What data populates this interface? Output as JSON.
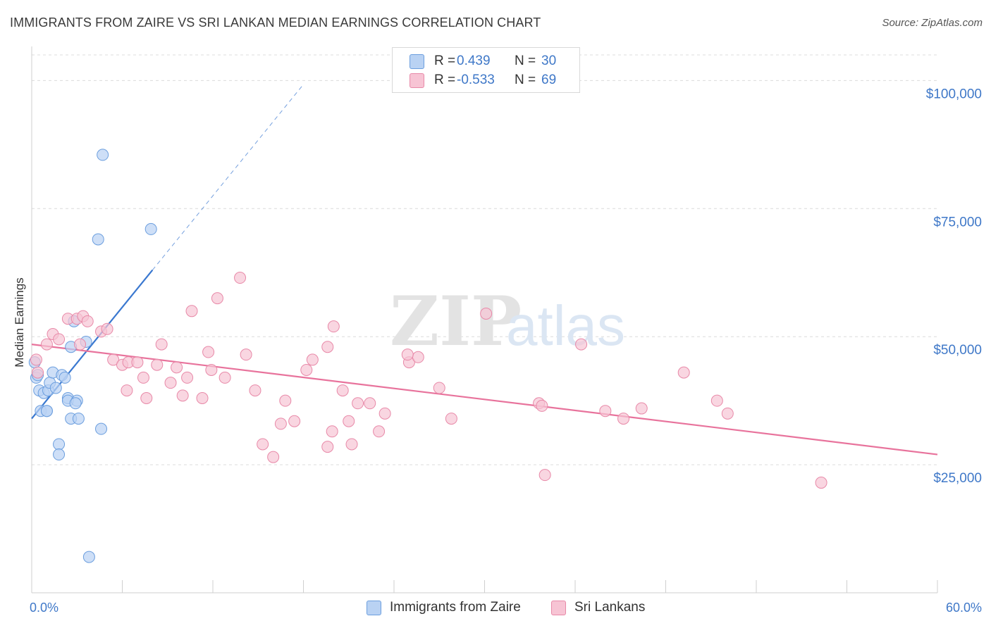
{
  "title": "IMMIGRANTS FROM ZAIRE VS SRI LANKAN MEDIAN EARNINGS CORRELATION CHART",
  "source": "Source: ZipAtlas.com",
  "watermark": {
    "zip": "ZIP",
    "atlas": "atlas"
  },
  "colors": {
    "blue_fill": "#b9d2f3",
    "blue_stroke": "#6b9ede",
    "blue_line": "#3a78d0",
    "pink_fill": "#f7c4d4",
    "pink_stroke": "#e889a8",
    "pink_line": "#e8739c",
    "tick_text": "#3f78c8",
    "grid": "#dcdcdc"
  },
  "legend": [
    {
      "r_label": "R =",
      "r_value": "0.439",
      "n_label": "N =",
      "n_value": "30",
      "color": "#b9d2f3"
    },
    {
      "r_label": "R =",
      "r_value": "-0.533",
      "n_label": "N =",
      "n_value": "69",
      "color": "#f7c4d4"
    }
  ],
  "bottom_legend": [
    {
      "label": "Immigrants from Zaire",
      "color": "#b9d2f3"
    },
    {
      "label": "Sri Lankans",
      "color": "#f7c4d4"
    }
  ],
  "chart_data": {
    "type": "scatter",
    "title": "IMMIGRANTS FROM ZAIRE VS SRI LANKAN MEDIAN EARNINGS CORRELATION CHART",
    "xlabel": "",
    "ylabel": "Median Earnings",
    "xlim": [
      0,
      60
    ],
    "ylim": [
      0,
      105000
    ],
    "x_tick_labels": [
      "0.0%",
      "60.0%"
    ],
    "x_ticks": [
      0,
      6,
      12,
      18,
      24,
      30,
      36,
      42,
      48,
      54,
      60
    ],
    "y_ticks": [
      25000,
      50000,
      75000,
      100000
    ],
    "y_tick_labels": [
      "$25,000",
      "$50,000",
      "$75,000",
      "$100,000"
    ],
    "grid": true,
    "legend_position": "top-center",
    "series": [
      {
        "name": "Immigrants from Zaire",
        "color": "#b9d2f3",
        "trend": {
          "x0": 0,
          "y0": 34000,
          "x1": 8,
          "y1": 63000,
          "dashed_to_x": 18
        },
        "points": [
          [
            0.2,
            45000
          ],
          [
            0.3,
            42000
          ],
          [
            0.5,
            39500
          ],
          [
            0.6,
            35500
          ],
          [
            0.8,
            39000
          ],
          [
            1.0,
            35500
          ],
          [
            1.1,
            39500
          ],
          [
            1.2,
            41000
          ],
          [
            1.4,
            43000
          ],
          [
            1.6,
            40000
          ],
          [
            1.8,
            29000
          ],
          [
            1.8,
            27000
          ],
          [
            2.0,
            42500
          ],
          [
            2.2,
            42000
          ],
          [
            2.4,
            38000
          ],
          [
            2.4,
            37500
          ],
          [
            2.6,
            48000
          ],
          [
            2.6,
            34000
          ],
          [
            2.8,
            53000
          ],
          [
            3.0,
            37500
          ],
          [
            3.1,
            34000
          ],
          [
            3.6,
            49000
          ],
          [
            4.4,
            69000
          ],
          [
            4.6,
            32000
          ],
          [
            4.7,
            85500
          ],
          [
            7.9,
            71000
          ],
          [
            3.8,
            7000
          ],
          [
            0.4,
            42500
          ],
          [
            1.0,
            35500
          ],
          [
            2.9,
            37000
          ]
        ]
      },
      {
        "name": "Sri Lankans",
        "color": "#f7c4d4",
        "trend": {
          "x0": 0,
          "y0": 48500,
          "x1": 60,
          "y1": 27000
        },
        "points": [
          [
            0.3,
            45500
          ],
          [
            0.4,
            43000
          ],
          [
            1.0,
            48500
          ],
          [
            1.4,
            50500
          ],
          [
            1.8,
            49500
          ],
          [
            2.4,
            53500
          ],
          [
            3.0,
            53500
          ],
          [
            3.2,
            48500
          ],
          [
            3.4,
            54000
          ],
          [
            3.7,
            53000
          ],
          [
            4.6,
            51000
          ],
          [
            5.0,
            51500
          ],
          [
            5.4,
            45500
          ],
          [
            6.0,
            44500
          ],
          [
            6.4,
            45000
          ],
          [
            6.3,
            39500
          ],
          [
            7.0,
            45000
          ],
          [
            7.4,
            42000
          ],
          [
            7.6,
            38000
          ],
          [
            8.3,
            44500
          ],
          [
            8.6,
            48500
          ],
          [
            9.2,
            41000
          ],
          [
            9.6,
            44000
          ],
          [
            10.0,
            38500
          ],
          [
            10.3,
            42000
          ],
          [
            10.6,
            55000
          ],
          [
            11.3,
            38000
          ],
          [
            11.7,
            47000
          ],
          [
            11.9,
            43500
          ],
          [
            12.8,
            42000
          ],
          [
            12.3,
            57500
          ],
          [
            13.8,
            61500
          ],
          [
            14.2,
            46500
          ],
          [
            14.8,
            39500
          ],
          [
            15.3,
            29000
          ],
          [
            16.0,
            26500
          ],
          [
            16.5,
            33000
          ],
          [
            16.8,
            37500
          ],
          [
            17.4,
            33500
          ],
          [
            18.2,
            43500
          ],
          [
            18.6,
            45500
          ],
          [
            19.6,
            48000
          ],
          [
            19.6,
            28500
          ],
          [
            19.9,
            31500
          ],
          [
            20.0,
            52000
          ],
          [
            20.6,
            39500
          ],
          [
            21.0,
            33500
          ],
          [
            21.2,
            29000
          ],
          [
            21.6,
            37000
          ],
          [
            22.4,
            37000
          ],
          [
            23.0,
            31500
          ],
          [
            23.4,
            35000
          ],
          [
            25.0,
            45000
          ],
          [
            25.6,
            46000
          ],
          [
            27.0,
            40000
          ],
          [
            27.8,
            34000
          ],
          [
            30.1,
            54500
          ],
          [
            33.6,
            37000
          ],
          [
            33.8,
            36500
          ],
          [
            34.0,
            23000
          ],
          [
            36.4,
            48500
          ],
          [
            38.0,
            35500
          ],
          [
            39.2,
            34000
          ],
          [
            40.4,
            36000
          ],
          [
            43.2,
            43000
          ],
          [
            45.4,
            37500
          ],
          [
            46.1,
            35000
          ],
          [
            52.3,
            21500
          ],
          [
            24.9,
            46500
          ]
        ]
      }
    ]
  }
}
